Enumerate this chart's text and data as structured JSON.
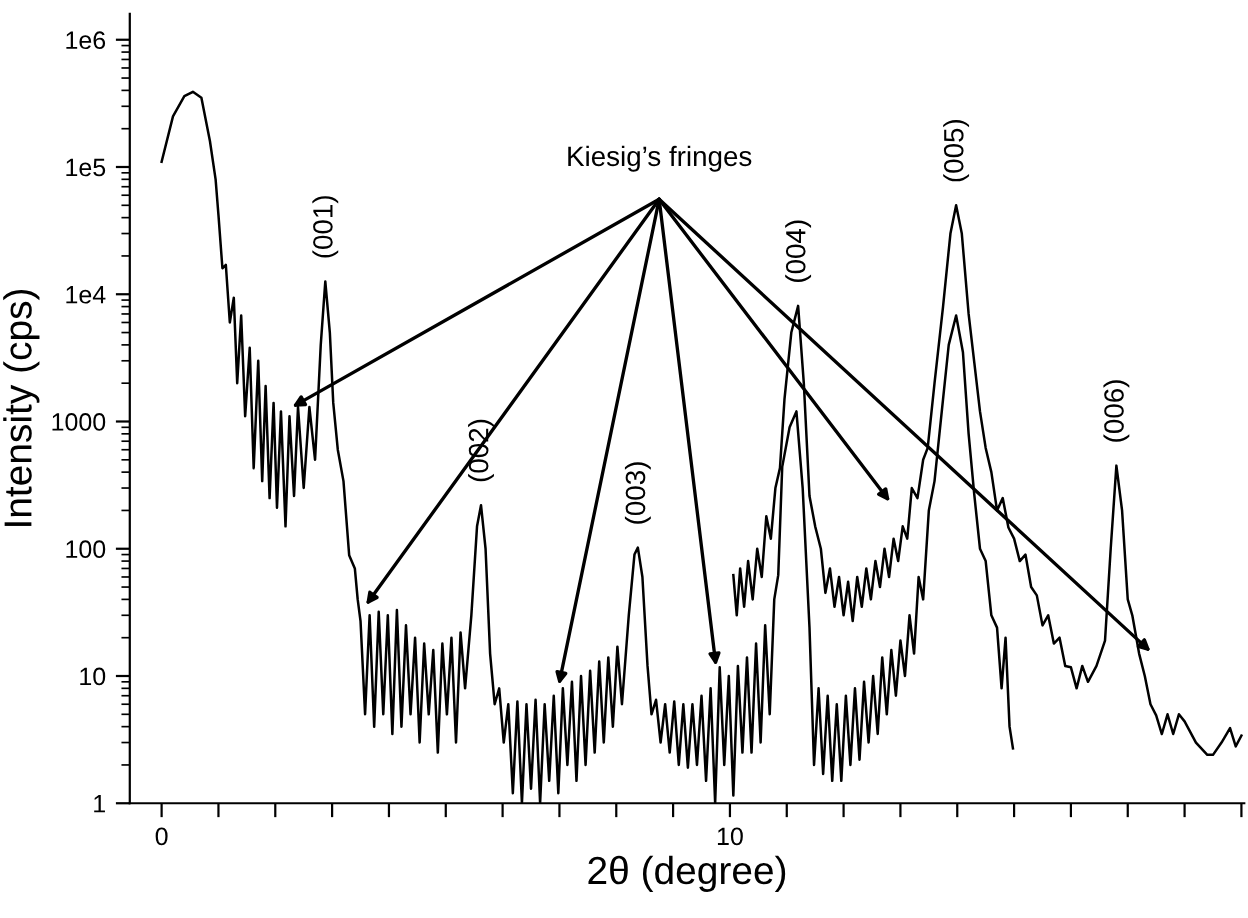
{
  "chart_data": {
    "type": "line",
    "xlabel": "2θ (degree)",
    "ylabel": "Intensity (cps)",
    "log": "y",
    "grid": false,
    "marker": "none",
    "line_style": "solid",
    "xlim": [
      -0.56,
      19.05
    ],
    "ylim": [
      1,
      1600000
    ],
    "xticks": [
      0,
      {
        "value": 1,
        "label": null
      },
      {
        "value": 2,
        "label": null
      },
      {
        "value": 3,
        "label": null
      },
      {
        "value": 4,
        "label": null
      },
      {
        "value": 5,
        "label": null
      },
      {
        "value": 6,
        "label": null
      },
      {
        "value": 7,
        "label": null
      },
      {
        "value": 8,
        "label": null
      },
      {
        "value": 9,
        "label": null
      },
      10,
      {
        "value": 11,
        "label": null
      },
      {
        "value": 12,
        "label": null
      },
      {
        "value": 13,
        "label": null
      },
      {
        "value": 14,
        "label": null
      },
      {
        "value": 15,
        "label": null
      },
      {
        "value": 16,
        "label": null
      },
      {
        "value": 17,
        "label": null
      },
      {
        "value": 18,
        "label": null
      },
      {
        "value": 19,
        "label": null
      }
    ],
    "yticks": [
      1,
      10,
      100,
      1000,
      {
        "value": 10000,
        "label": "1e4"
      },
      {
        "value": 100000,
        "label": "1e5"
      },
      {
        "value": 1000000,
        "label": "1e6"
      }
    ],
    "series": [
      {
        "color": "#000000",
        "x": [
          0.0,
          0.2,
          0.4,
          0.55,
          0.7,
          0.85,
          0.95,
          1.0,
          1.07,
          1.13,
          1.2,
          1.27,
          1.33,
          1.4,
          1.47,
          1.55,
          1.62,
          1.7,
          1.77,
          1.83,
          1.9,
          1.97,
          2.03,
          2.1,
          2.18,
          2.25,
          2.33,
          2.4,
          2.5,
          2.6,
          2.7,
          2.8,
          2.88,
          2.96,
          3.02,
          3.1,
          3.2,
          3.3,
          3.4,
          3.45,
          3.5,
          3.58,
          3.66,
          3.74,
          3.82,
          3.9,
          3.98,
          4.06,
          4.14,
          4.22,
          4.3,
          4.38,
          4.46,
          4.54,
          4.62,
          4.7,
          4.78,
          4.86,
          4.94,
          5.02,
          5.1,
          5.18,
          5.26,
          5.34,
          5.45,
          5.55,
          5.62,
          5.7,
          5.78,
          5.86,
          5.94,
          6.02,
          6.1,
          6.18,
          6.26,
          6.34,
          6.42,
          6.5,
          6.58,
          6.66,
          6.74,
          6.82,
          6.9,
          6.98,
          7.06,
          7.14,
          7.22,
          7.3,
          7.38,
          7.46,
          7.54,
          7.62,
          7.7,
          7.78,
          7.86,
          7.94,
          8.02,
          8.1,
          8.22,
          8.32,
          8.38,
          8.46,
          8.55,
          8.62,
          8.7,
          8.78,
          8.86,
          8.94,
          9.02,
          9.1,
          9.18,
          9.26,
          9.34,
          9.42,
          9.5,
          9.58,
          9.66,
          9.74,
          9.82,
          9.9,
          9.98,
          10.06,
          10.14,
          10.22,
          10.3,
          10.38,
          10.46,
          10.54,
          10.62,
          10.7,
          10.78,
          10.85,
          10.92,
          11.05,
          11.17,
          11.28,
          11.4,
          11.48,
          11.56,
          11.64,
          11.72,
          11.8,
          11.88,
          11.96,
          12.04,
          12.12,
          12.2,
          12.28,
          12.36,
          12.44,
          12.52,
          12.6,
          12.68,
          12.76,
          12.84,
          12.92,
          13.0,
          13.08,
          13.16,
          13.24,
          13.32,
          13.4,
          13.5,
          13.6,
          13.75,
          13.85,
          13.98,
          14.1,
          14.2,
          14.3,
          14.4,
          14.5,
          14.6,
          14.7,
          14.78,
          14.85,
          14.92,
          14.98
        ],
        "values": [
          110000,
          250000,
          360000,
          390000,
          350000,
          160000,
          80000,
          42000,
          16000,
          17000,
          6000,
          9400,
          2000,
          6800,
          1100,
          3800,
          430,
          3000,
          340,
          1900,
          250,
          1400,
          210,
          1200,
          150,
          1100,
          260,
          1300,
          300,
          1300,
          500,
          4000,
          12600,
          5000,
          1400,
          600,
          340,
          89,
          70,
          40,
          27,
          5,
          30,
          4,
          32,
          5,
          30,
          3.5,
          33,
          4,
          25,
          5,
          20,
          3,
          18,
          5,
          16,
          2.5,
          18,
          5,
          20,
          3,
          22,
          8,
          30,
          150,
          220,
          100,
          15,
          6,
          8,
          3,
          6,
          1.2,
          6.3,
          1,
          6,
          1.3,
          6.5,
          1,
          6,
          1.5,
          7,
          1.2,
          8,
          2,
          9,
          1.5,
          10,
          2,
          11,
          2.5,
          13,
          3,
          14,
          4,
          17,
          6,
          30,
          90,
          102,
          60,
          12,
          5,
          6.5,
          3,
          6,
          2.5,
          6.3,
          2,
          6,
          1.9,
          6,
          2,
          7,
          1.5,
          8,
          1,
          11.7,
          2,
          10,
          1.15,
          12,
          2.5,
          14,
          2.5,
          18,
          3,
          25,
          5,
          40,
          62,
          440,
          900,
          1200,
          300,
          24,
          2,
          8,
          1.7,
          7,
          1.5,
          6,
          1.5,
          7,
          2,
          8,
          2.2,
          9,
          3,
          10,
          3.5,
          14,
          5,
          16,
          7,
          19,
          10,
          30,
          15,
          60,
          40,
          200,
          340,
          1500,
          4000,
          6800,
          3500,
          800,
          265,
          100,
          80,
          30,
          24,
          8,
          20,
          4,
          2.7
        ]
      },
      {
        "color": "#000000",
        "x": [
          10.06,
          10.12,
          10.18,
          10.25,
          10.32,
          10.4,
          10.48,
          10.56,
          10.64,
          10.72,
          10.8,
          10.88,
          10.96,
          11.08,
          11.2,
          11.3,
          11.4,
          11.5,
          11.6,
          11.68,
          11.76,
          11.84,
          11.92,
          12.0,
          12.08,
          12.16,
          12.24,
          12.32,
          12.4,
          12.48,
          12.56,
          12.64,
          12.72,
          12.8,
          12.88,
          12.96,
          13.04,
          13.12,
          13.2,
          13.3,
          13.4,
          13.48,
          13.6,
          13.75,
          13.88,
          13.98,
          14.08,
          14.2,
          14.3,
          14.4,
          14.5,
          14.6,
          14.7,
          14.8,
          14.9,
          15.0,
          15.1,
          15.2,
          15.3,
          15.4,
          15.5,
          15.6,
          15.7,
          15.8,
          15.9,
          16.0,
          16.1,
          16.2,
          16.3,
          16.45,
          16.6,
          16.7,
          16.8,
          16.9,
          17.0,
          17.08,
          17.2,
          17.3,
          17.4,
          17.5,
          17.6,
          17.7,
          17.8,
          17.9,
          18.0,
          18.2,
          18.4,
          18.5,
          18.65,
          18.8,
          18.9,
          19.0
        ],
        "values": [
          62,
          30,
          70,
          35,
          80,
          40,
          100,
          60,
          180,
          120,
          300,
          430,
          1500,
          5000,
          8100,
          2000,
          260,
          150,
          100,
          45,
          70,
          35,
          60,
          30,
          55,
          27,
          60,
          35,
          70,
          40,
          80,
          50,
          100,
          60,
          120,
          80,
          150,
          120,
          300,
          250,
          500,
          620,
          2000,
          8000,
          30000,
          50000,
          30000,
          7000,
          2900,
          1200,
          620,
          400,
          200,
          250,
          147,
          120,
          80,
          90,
          50,
          43,
          25,
          30,
          18,
          20,
          12,
          11.7,
          8,
          12,
          9,
          12,
          19,
          100,
          450,
          200,
          40,
          30,
          15,
          10,
          6,
          4.9,
          3.5,
          5,
          3.5,
          5,
          4.4,
          3,
          2.4,
          2.4,
          3,
          3.9,
          2.8,
          3.4
        ]
      }
    ],
    "annotations": [
      {
        "text": "Kiesig’s fringes",
        "x": 2.3,
        "y": 1300
      },
      {
        "text": "(001)",
        "x": 2.88,
        "y": 12600
      },
      {
        "text": "(002)",
        "x": 5.62,
        "y": 220
      },
      {
        "text": "(003)",
        "x": 8.38,
        "y": 102
      },
      {
        "text": "(004)",
        "x": 11.2,
        "y": 8100
      },
      {
        "text": "(005)",
        "x": 13.98,
        "y": 50000
      },
      {
        "text": "(006)",
        "x": 16.8,
        "y": 450
      }
    ]
  }
}
